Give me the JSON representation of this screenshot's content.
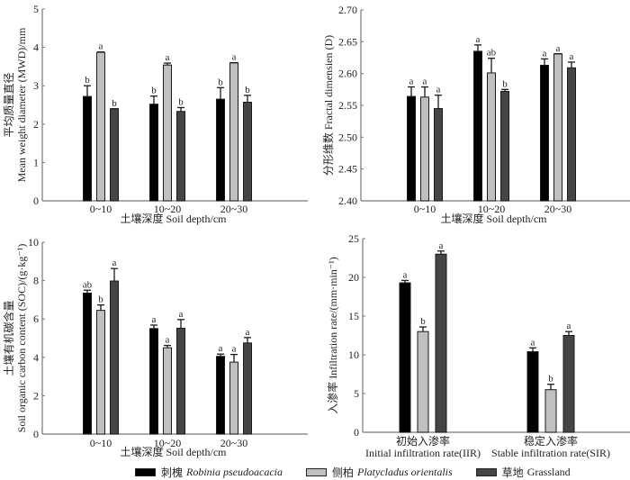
{
  "chart_data": [
    {
      "id": "mwd",
      "type": "bar",
      "ylabel_cn": "平均质量直径",
      "ylabel_en": "Mean weight diameter (MWD)/mm",
      "xlabel": "土壤深度 Soil depth/cm",
      "categories": [
        "0~10",
        "10~20",
        "20~30"
      ],
      "ylim": [
        0,
        5
      ],
      "yticks": [
        0,
        1,
        2,
        3,
        4,
        5
      ],
      "ytick_labels": [
        "0",
        "1",
        "2",
        "3",
        "4",
        "5"
      ],
      "series": [
        {
          "name": "刺槐 Robinia pseudoacacia",
          "values": [
            2.72,
            2.52,
            2.65
          ],
          "errors": [
            0.28,
            0.21,
            0.3
          ],
          "letters": [
            "b",
            "b",
            "b"
          ]
        },
        {
          "name": "侧柏 Platycladus orientalis",
          "values": [
            3.87,
            3.54,
            3.6
          ],
          "errors": [
            0.01,
            0.05,
            0.0
          ],
          "letters": [
            "a",
            "a",
            "a"
          ]
        },
        {
          "name": "草地 Grassland",
          "values": [
            2.4,
            2.33,
            2.57
          ],
          "errors": [
            0.0,
            0.1,
            0.18
          ],
          "letters": [
            "b",
            "b",
            "b"
          ]
        }
      ]
    },
    {
      "id": "fractal",
      "type": "bar",
      "ylabel_cn": "分形维数",
      "ylabel_en": "Fractal dimensien (D)",
      "xlabel": "土壤深度 Soil depth/cm",
      "categories": [
        "0~10",
        "10~20",
        "20~30"
      ],
      "ylim": [
        2.4,
        2.7
      ],
      "yticks": [
        2.4,
        2.45,
        2.5,
        2.55,
        2.6,
        2.65,
        2.7
      ],
      "ytick_labels": [
        "2.40",
        "2.45",
        "2.50",
        "2.55",
        "2.60",
        "2.65",
        "2.70"
      ],
      "series": [
        {
          "name": "刺槐 Robinia pseudoacacia",
          "values": [
            2.564,
            2.635,
            2.613
          ],
          "errors": [
            0.015,
            0.01,
            0.01
          ],
          "letters": [
            "a",
            "a",
            "a"
          ]
        },
        {
          "name": "侧柏 Platycladus orientalis",
          "values": [
            2.563,
            2.601,
            2.631
          ],
          "errors": [
            0.016,
            0.023,
            0.0
          ],
          "letters": [
            "a",
            "ab",
            "a"
          ]
        },
        {
          "name": "草地 Grassland",
          "values": [
            2.545,
            2.572,
            2.609
          ],
          "errors": [
            0.021,
            0.003,
            0.009
          ],
          "letters": [
            "a",
            "b",
            "a"
          ]
        }
      ]
    },
    {
      "id": "soc",
      "type": "bar",
      "ylabel_cn": "土壤有机碳含量",
      "ylabel_en": "Soil organic carbon content (SOC)/(g·kg⁻¹)",
      "xlabel": "土壤深度 Soil depth/cm",
      "categories": [
        "0~10",
        "10~20",
        "20~30"
      ],
      "ylim": [
        0,
        10
      ],
      "yticks": [
        0,
        2,
        4,
        6,
        8,
        10
      ],
      "ytick_labels": [
        "0",
        "2",
        "4",
        "6",
        "8",
        "10"
      ],
      "series": [
        {
          "name": "刺槐 Robinia pseudoacacia",
          "values": [
            7.35,
            5.5,
            4.05
          ],
          "errors": [
            0.15,
            0.18,
            0.12
          ],
          "letters": [
            "ab",
            "a",
            "a"
          ]
        },
        {
          "name": "侧柏 Platycladus orientalis",
          "values": [
            6.45,
            4.5,
            3.75
          ],
          "errors": [
            0.28,
            0.12,
            0.4
          ],
          "letters": [
            "b",
            "a",
            "a"
          ]
        },
        {
          "name": "草地 Grassland",
          "values": [
            7.98,
            5.52,
            4.75
          ],
          "errors": [
            0.65,
            0.45,
            0.28
          ],
          "letters": [
            "a",
            "a",
            "a"
          ]
        }
      ]
    },
    {
      "id": "infiltration",
      "type": "bar",
      "ylabel_cn": "入渗率",
      "ylabel_en": "Infiltration rate/(mm·min⁻¹)",
      "xlabel": "",
      "categories": [
        "初始入渗率",
        "稳定入渗率"
      ],
      "categories_en": [
        "Initial infiltration rate(IIR)",
        "Stable infiltration rate(SIR)"
      ],
      "ylim": [
        0,
        25
      ],
      "yticks": [
        0,
        5,
        10,
        15,
        20,
        25
      ],
      "ytick_labels": [
        "0",
        "5",
        "10",
        "15",
        "20",
        "25"
      ],
      "series": [
        {
          "name": "刺槐 Robinia pseudoacacia",
          "values": [
            19.3,
            10.4
          ],
          "errors": [
            0.3,
            0.5
          ],
          "letters": [
            "a",
            "a"
          ]
        },
        {
          "name": "侧柏 Platycladus orientalis",
          "values": [
            13.0,
            5.5
          ],
          "errors": [
            0.6,
            0.7
          ],
          "letters": [
            "b",
            "b"
          ]
        },
        {
          "name": "草地 Grassland",
          "values": [
            23.0,
            12.5
          ],
          "errors": [
            0.4,
            0.5
          ],
          "letters": [
            "a",
            "a"
          ]
        }
      ]
    }
  ],
  "legend": {
    "items": [
      {
        "cn": "刺槐",
        "latin": "Robinia pseudoacacia",
        "color": "#000000"
      },
      {
        "cn": "侧柏",
        "latin": "Platycladus orientalis",
        "color": "#c0c0c0"
      },
      {
        "cn": "草地",
        "latin": "Grassland",
        "color": "#454545"
      }
    ]
  },
  "colors": {
    "series": [
      "#000000",
      "#c0c0c0",
      "#454545"
    ],
    "axis": "#777777"
  }
}
